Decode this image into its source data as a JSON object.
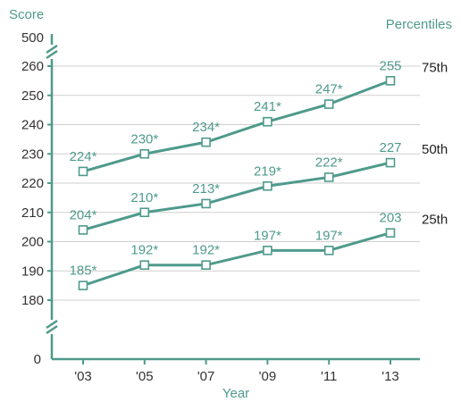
{
  "chart_data": {
    "type": "line",
    "ylabel": "Score",
    "xlabel": "Year",
    "legend_title": "Percentiles",
    "categories": [
      "'03",
      "'05",
      "'07",
      "'09",
      "'11",
      "'13"
    ],
    "y_ticks_lower": [
      0
    ],
    "y_ticks_upper": [
      500
    ],
    "y_ticks_main": [
      180,
      190,
      200,
      210,
      220,
      230,
      240,
      250,
      260
    ],
    "ylim": [
      180,
      260
    ],
    "axis_break": true,
    "grid": true,
    "line_color": "#4e9a8c",
    "series": [
      {
        "name": "75th",
        "values": [
          224,
          230,
          234,
          241,
          247,
          255
        ],
        "labels": [
          "224*",
          "230*",
          "234*",
          "241*",
          "247*",
          "255"
        ]
      },
      {
        "name": "50th",
        "values": [
          204,
          210,
          213,
          219,
          222,
          227
        ],
        "labels": [
          "204*",
          "210*",
          "213*",
          "219*",
          "222*",
          "227"
        ]
      },
      {
        "name": "25th",
        "values": [
          185,
          192,
          192,
          197,
          197,
          203
        ],
        "labels": [
          "185*",
          "192*",
          "192*",
          "197*",
          "197*",
          "203"
        ]
      }
    ]
  }
}
